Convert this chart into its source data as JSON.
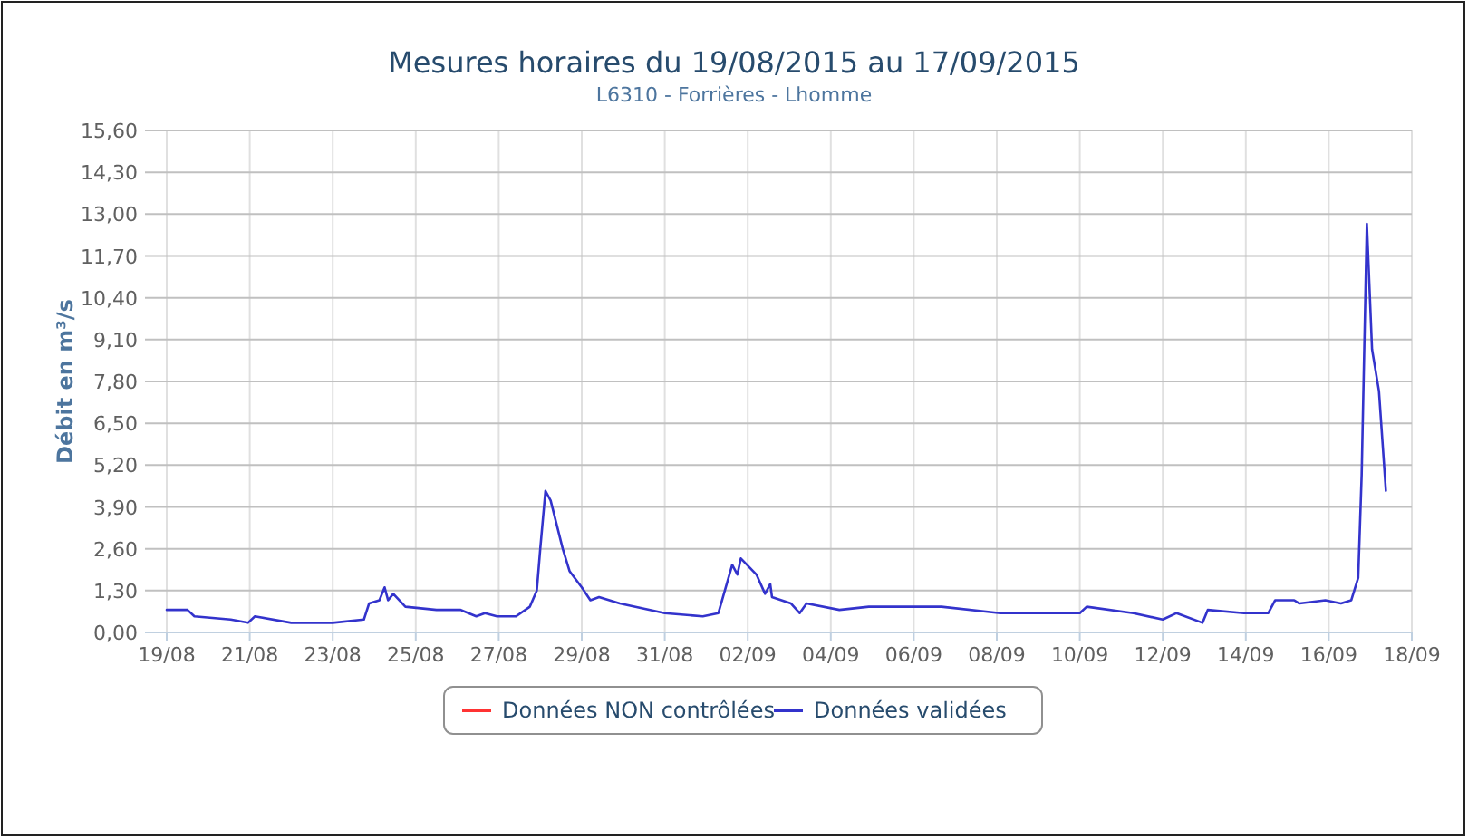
{
  "chart_data": {
    "type": "line",
    "title": "Mesures horaires du 19/08/2015 au 17/09/2015",
    "subtitle": "L6310 - Forrières - Lhomme",
    "ylabel": "Débit en m³/s",
    "xlim": [
      "2015-08-19",
      "2015-09-18"
    ],
    "xticks": [
      {
        "value": "2015-08-19",
        "label": "19/08"
      },
      {
        "value": "2015-08-21",
        "label": "21/08"
      },
      {
        "value": "2015-08-23",
        "label": "23/08"
      },
      {
        "value": "2015-08-25",
        "label": "25/08"
      },
      {
        "value": "2015-08-27",
        "label": "27/08"
      },
      {
        "value": "2015-08-29",
        "label": "29/08"
      },
      {
        "value": "2015-08-31",
        "label": "31/08"
      },
      {
        "value": "2015-09-02",
        "label": "02/09"
      },
      {
        "value": "2015-09-04",
        "label": "04/09"
      },
      {
        "value": "2015-09-06",
        "label": "06/09"
      },
      {
        "value": "2015-09-08",
        "label": "08/09"
      },
      {
        "value": "2015-09-10",
        "label": "10/09"
      },
      {
        "value": "2015-09-12",
        "label": "12/09"
      },
      {
        "value": "2015-09-14",
        "label": "14/09"
      },
      {
        "value": "2015-09-16",
        "label": "16/09"
      },
      {
        "value": "2015-09-18",
        "label": "18/09"
      }
    ],
    "ylim": [
      0,
      15.6
    ],
    "yticks": [
      {
        "value": 0,
        "label": "0,00"
      },
      {
        "value": 1.3,
        "label": "1,30"
      },
      {
        "value": 2.6,
        "label": "2,60"
      },
      {
        "value": 3.9,
        "label": "3,90"
      },
      {
        "value": 5.2,
        "label": "5,20"
      },
      {
        "value": 6.5,
        "label": "6,50"
      },
      {
        "value": 7.8,
        "label": "7,80"
      },
      {
        "value": 9.1,
        "label": "9,10"
      },
      {
        "value": 10.4,
        "label": "10,40"
      },
      {
        "value": 11.7,
        "label": "11,70"
      },
      {
        "value": 13,
        "label": "13,00"
      },
      {
        "value": 14.3,
        "label": "14,30"
      },
      {
        "value": 15.6,
        "label": "15,60"
      }
    ],
    "grid": true,
    "legend": "bottom",
    "line_style": "solid",
    "series": [
      {
        "name": "Données NON contrôlées",
        "color": "#ff3333"
      },
      {
        "name": "Données validées",
        "color": "#3333cc",
        "x": [
          "2015-08-19T00:00",
          "2015-08-19T12:00",
          "2015-08-19T16:00",
          "2015-08-20T13:00",
          "2015-08-20T23:00",
          "2015-08-21T03:00",
          "2015-08-22T00:00",
          "2015-08-23T00:00",
          "2015-08-23T18:00",
          "2015-08-23T21:00",
          "2015-08-24T03:00",
          "2015-08-24T06:00",
          "2015-08-24T08:00",
          "2015-08-24T11:00",
          "2015-08-24T18:00",
          "2015-08-25T12:00",
          "2015-08-26T02:00",
          "2015-08-26T11:00",
          "2015-08-26T16:00",
          "2015-08-26T23:00",
          "2015-08-27T10:00",
          "2015-08-27T18:00",
          "2015-08-27T22:00",
          "2015-08-28T00:00",
          "2015-08-28T03:00",
          "2015-08-28T06:00",
          "2015-08-28T13:00",
          "2015-08-28T17:00",
          "2015-08-29T00:00",
          "2015-08-29T05:00",
          "2015-08-29T10:00",
          "2015-08-29T22:00",
          "2015-08-31T00:00",
          "2015-08-31T22:00",
          "2015-09-01T07:00",
          "2015-09-01T15:00",
          "2015-09-01T18:00",
          "2015-09-01T20:00",
          "2015-09-02T05:00",
          "2015-09-02T10:00",
          "2015-09-02T13:00",
          "2015-09-02T14:00",
          "2015-09-03T01:00",
          "2015-09-03T06:00",
          "2015-09-03T10:00",
          "2015-09-04T05:00",
          "2015-09-04T22:00",
          "2015-09-06T16:00",
          "2015-09-08T02:00",
          "2015-09-08T19:00",
          "2015-09-10T00:00",
          "2015-09-10T04:00",
          "2015-09-11T07:00",
          "2015-09-12T00:00",
          "2015-09-12T08:00",
          "2015-09-12T23:00",
          "2015-09-13T02:00",
          "2015-09-13T23:00",
          "2015-09-14T13:00",
          "2015-09-14T17:00",
          "2015-09-15T04:00",
          "2015-09-15T07:00",
          "2015-09-15T22:00",
          "2015-09-16T07:00",
          "2015-09-16T13:00",
          "2015-09-16T17:00",
          "2015-09-16T19:00",
          "2015-09-16T22:00",
          "2015-09-17T01:00",
          "2015-09-17T05:00",
          "2015-09-17T09:00"
        ],
        "values": [
          0.7,
          0.7,
          0.5,
          0.4,
          0.3,
          0.5,
          0.3,
          0.3,
          0.4,
          0.9,
          1.0,
          1.4,
          1.0,
          1.2,
          0.8,
          0.7,
          0.7,
          0.5,
          0.6,
          0.5,
          0.5,
          0.8,
          1.3,
          2.6,
          4.4,
          4.1,
          2.6,
          1.9,
          1.4,
          1.0,
          1.1,
          0.9,
          0.6,
          0.5,
          0.6,
          2.1,
          1.8,
          2.3,
          1.8,
          1.2,
          1.5,
          1.1,
          0.9,
          0.6,
          0.9,
          0.7,
          0.8,
          0.8,
          0.6,
          0.6,
          0.6,
          0.8,
          0.6,
          0.4,
          0.6,
          0.3,
          0.7,
          0.6,
          0.6,
          1.0,
          1.0,
          0.9,
          1.0,
          0.9,
          1.0,
          1.7,
          4.9,
          12.7,
          8.8,
          7.5,
          4.4
        ]
      }
    ]
  }
}
